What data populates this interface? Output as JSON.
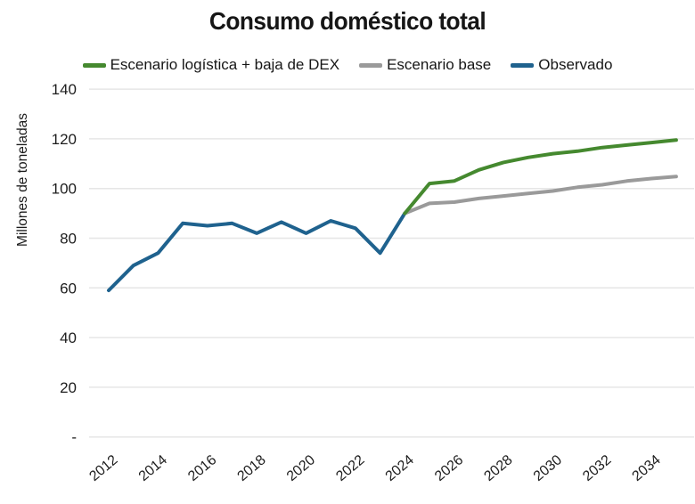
{
  "title": "Consumo doméstico total",
  "legend": {
    "items": [
      "Escenario logística + baja de DEX",
      "Escenario base",
      "Observado"
    ]
  },
  "chart_data": {
    "type": "line",
    "title": "Consumo doméstico total",
    "xlabel": "",
    "ylabel": "Millones de toneladas",
    "ylim": [
      0,
      140
    ],
    "xlim": [
      2012,
      2035
    ],
    "grid": "horizontal",
    "legend_position": "top",
    "ytick_labels": [
      "140",
      "120",
      "100",
      "80",
      "60",
      "40",
      "20",
      "-"
    ],
    "ytick_values": [
      140,
      120,
      100,
      80,
      60,
      40,
      20,
      0
    ],
    "xtick_labels": [
      "2012",
      "2014",
      "2016",
      "2018",
      "2020",
      "2022",
      "2024",
      "2026",
      "2028",
      "2030",
      "2032",
      "2034"
    ],
    "xtick_values": [
      2012,
      2014,
      2016,
      2018,
      2020,
      2022,
      2024,
      2026,
      2028,
      2030,
      2032,
      2034
    ],
    "series": [
      {
        "name": "Escenario logística + baja de DEX",
        "color": "#45892f",
        "x": [
          2024,
          2025,
          2026,
          2027,
          2028,
          2029,
          2030,
          2031,
          2032,
          2033,
          2034,
          2035
        ],
        "values": [
          90,
          102,
          103,
          107.5,
          110.5,
          112.5,
          114,
          115,
          116.5,
          117.5,
          118.5,
          119.5
        ]
      },
      {
        "name": "Escenario base",
        "color": "#9a9a9a",
        "x": [
          2024,
          2025,
          2026,
          2027,
          2028,
          2029,
          2030,
          2031,
          2032,
          2033,
          2034,
          2035
        ],
        "values": [
          90,
          94,
          94.5,
          96,
          97,
          98,
          99,
          100.5,
          101.5,
          103,
          104,
          104.8
        ]
      },
      {
        "name": "Observado",
        "color": "#1f628e",
        "x": [
          2012,
          2013,
          2014,
          2015,
          2016,
          2017,
          2018,
          2019,
          2020,
          2021,
          2022,
          2023,
          2024
        ],
        "values": [
          59,
          69,
          74,
          86,
          85,
          86,
          82,
          86.5,
          82,
          87,
          84,
          74,
          90
        ]
      }
    ],
    "colors": {
      "grid": "#e6e6e6",
      "text": "#1d1d1d",
      "background": "#ffffff"
    }
  }
}
